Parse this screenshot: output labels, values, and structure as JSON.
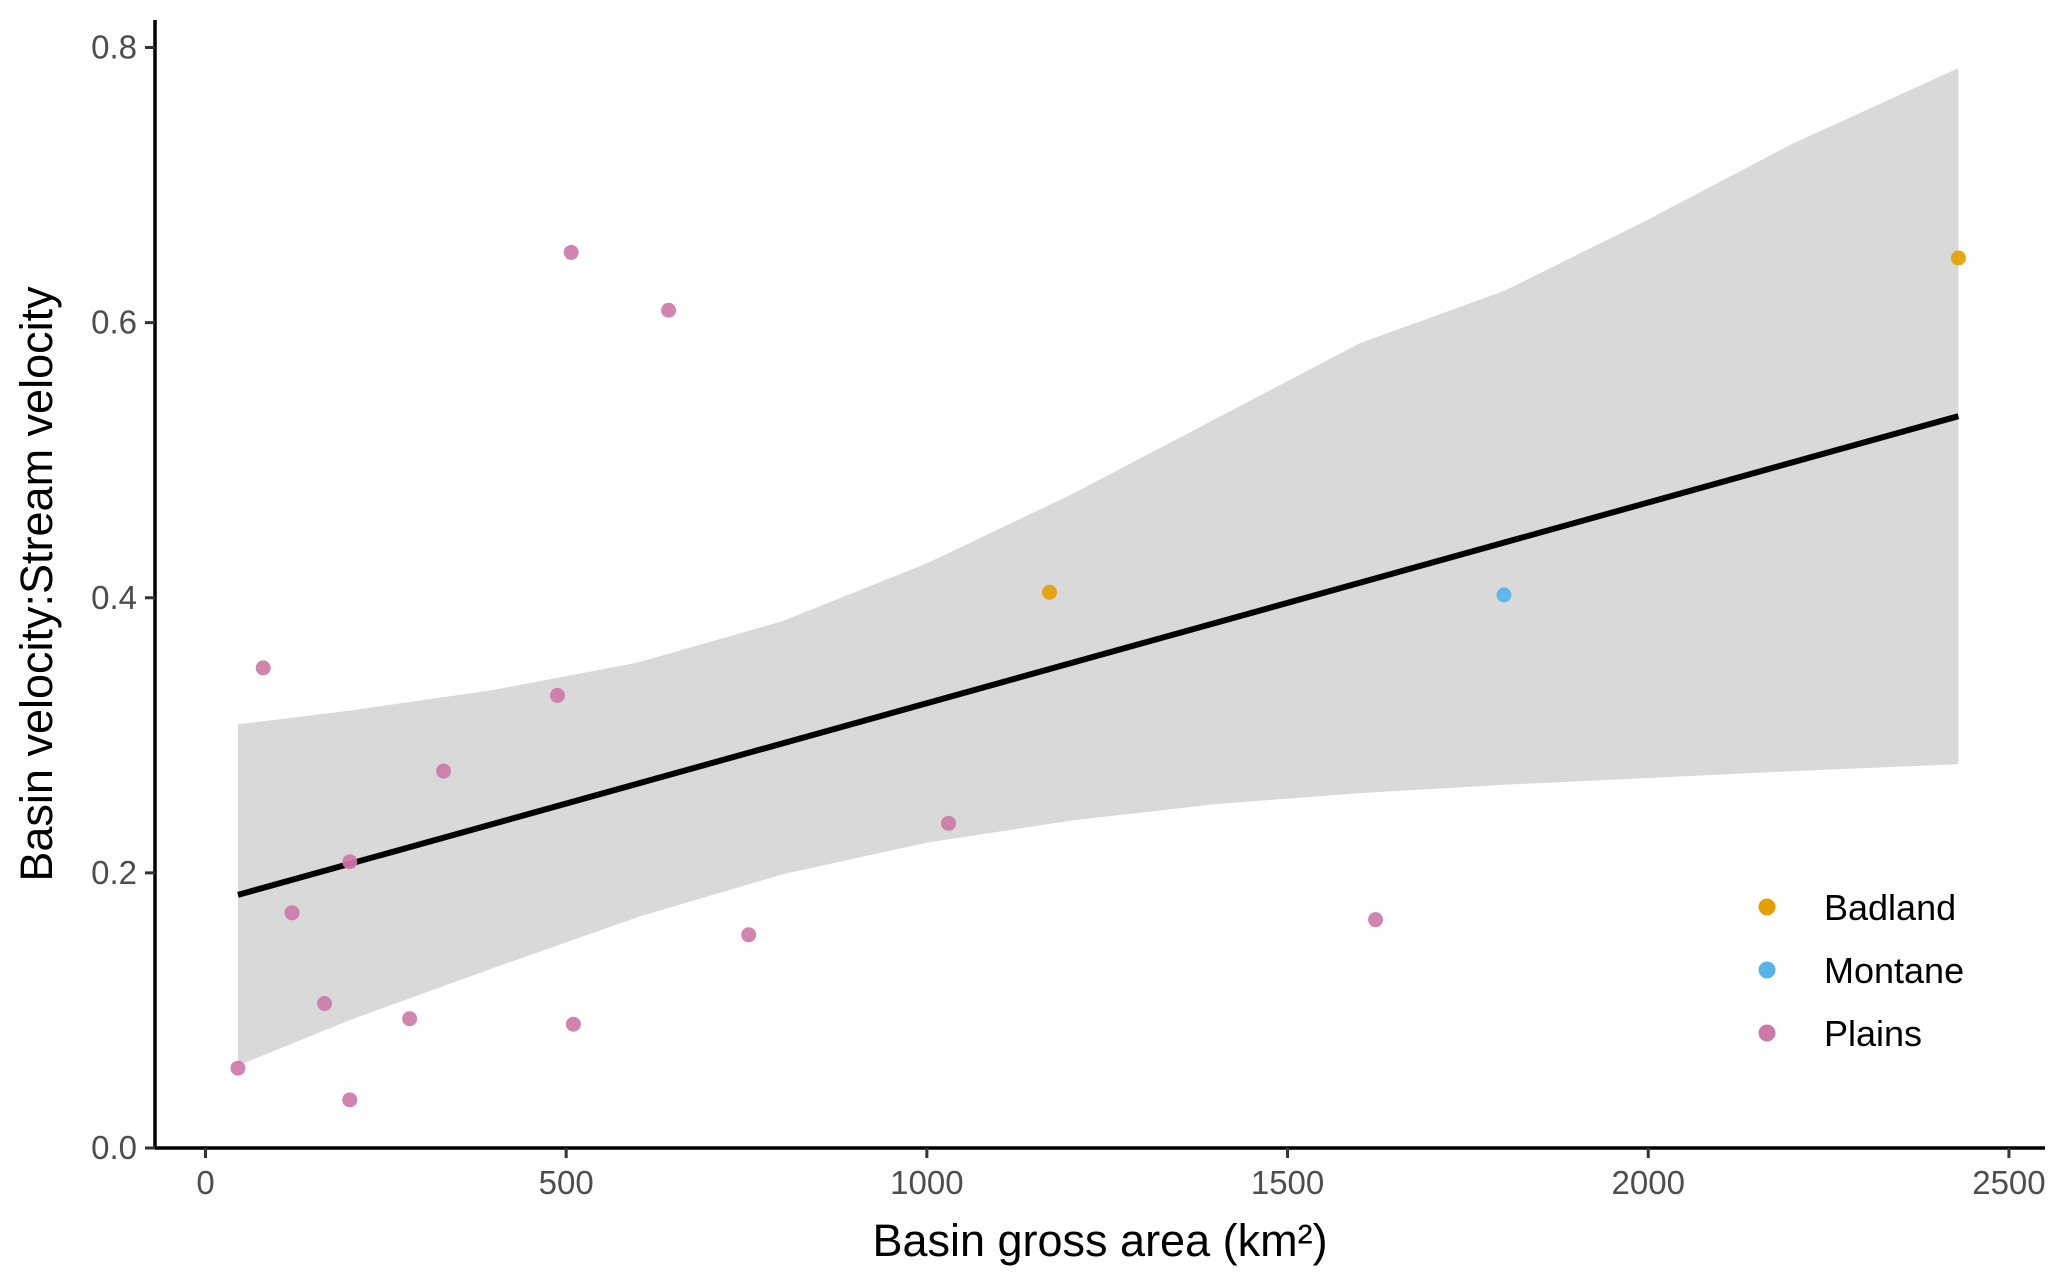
{
  "chart_data": {
    "type": "scatter",
    "xlabel": "Basin gross area (km²)",
    "ylabel": "Basin velocity:Stream velocity",
    "xlim": [
      -70,
      2550
    ],
    "ylim": [
      0,
      0.82
    ],
    "xticks": [
      0,
      500,
      1000,
      1500,
      2000,
      2500
    ],
    "yticks": [
      0.0,
      0.2,
      0.4,
      0.6,
      0.8
    ],
    "xtick_labels": [
      "0",
      "500",
      "1000",
      "1500",
      "2000",
      "2500"
    ],
    "ytick_labels": [
      "0.0",
      "0.2",
      "0.4",
      "0.6",
      "0.8"
    ],
    "grid": false,
    "legend_position": "bottom-right",
    "series": [
      {
        "name": "Badland",
        "color": "#E69F00",
        "points": [
          {
            "x": 1170,
            "y": 0.404
          },
          {
            "x": 2430,
            "y": 0.647
          }
        ]
      },
      {
        "name": "Montane",
        "color": "#56B4E9",
        "points": [
          {
            "x": 1800,
            "y": 0.402
          }
        ]
      },
      {
        "name": "Plains",
        "color": "#CC79A7",
        "points": [
          {
            "x": 45,
            "y": 0.058
          },
          {
            "x": 80,
            "y": 0.349
          },
          {
            "x": 120,
            "y": 0.171
          },
          {
            "x": 165,
            "y": 0.105
          },
          {
            "x": 200,
            "y": 0.035
          },
          {
            "x": 200,
            "y": 0.208
          },
          {
            "x": 283,
            "y": 0.094
          },
          {
            "x": 330,
            "y": 0.274
          },
          {
            "x": 488,
            "y": 0.329
          },
          {
            "x": 507,
            "y": 0.651
          },
          {
            "x": 510,
            "y": 0.09
          },
          {
            "x": 642,
            "y": 0.609
          },
          {
            "x": 753,
            "y": 0.155
          },
          {
            "x": 1030,
            "y": 0.236
          },
          {
            "x": 1622,
            "y": 0.166
          }
        ]
      }
    ],
    "regression": {
      "line": [
        {
          "x": 45,
          "y": 0.184
        },
        {
          "x": 2430,
          "y": 0.532
        }
      ],
      "ci_band": [
        {
          "x": 45,
          "lo": 0.06,
          "hi": 0.308
        },
        {
          "x": 200,
          "lo": 0.093,
          "hi": 0.318
        },
        {
          "x": 400,
          "lo": 0.131,
          "hi": 0.333
        },
        {
          "x": 600,
          "lo": 0.168,
          "hi": 0.353
        },
        {
          "x": 800,
          "lo": 0.199,
          "hi": 0.383
        },
        {
          "x": 1000,
          "lo": 0.222,
          "hi": 0.425
        },
        {
          "x": 1200,
          "lo": 0.238,
          "hi": 0.475
        },
        {
          "x": 1400,
          "lo": 0.25,
          "hi": 0.53
        },
        {
          "x": 1600,
          "lo": 0.258,
          "hi": 0.585
        },
        {
          "x": 1800,
          "lo": 0.264,
          "hi": 0.623
        },
        {
          "x": 2000,
          "lo": 0.269,
          "hi": 0.675
        },
        {
          "x": 2200,
          "lo": 0.274,
          "hi": 0.73
        },
        {
          "x": 2430,
          "lo": 0.279,
          "hi": 0.785
        }
      ],
      "line_color": "#000000",
      "band_color": "#d9d9d9"
    }
  }
}
